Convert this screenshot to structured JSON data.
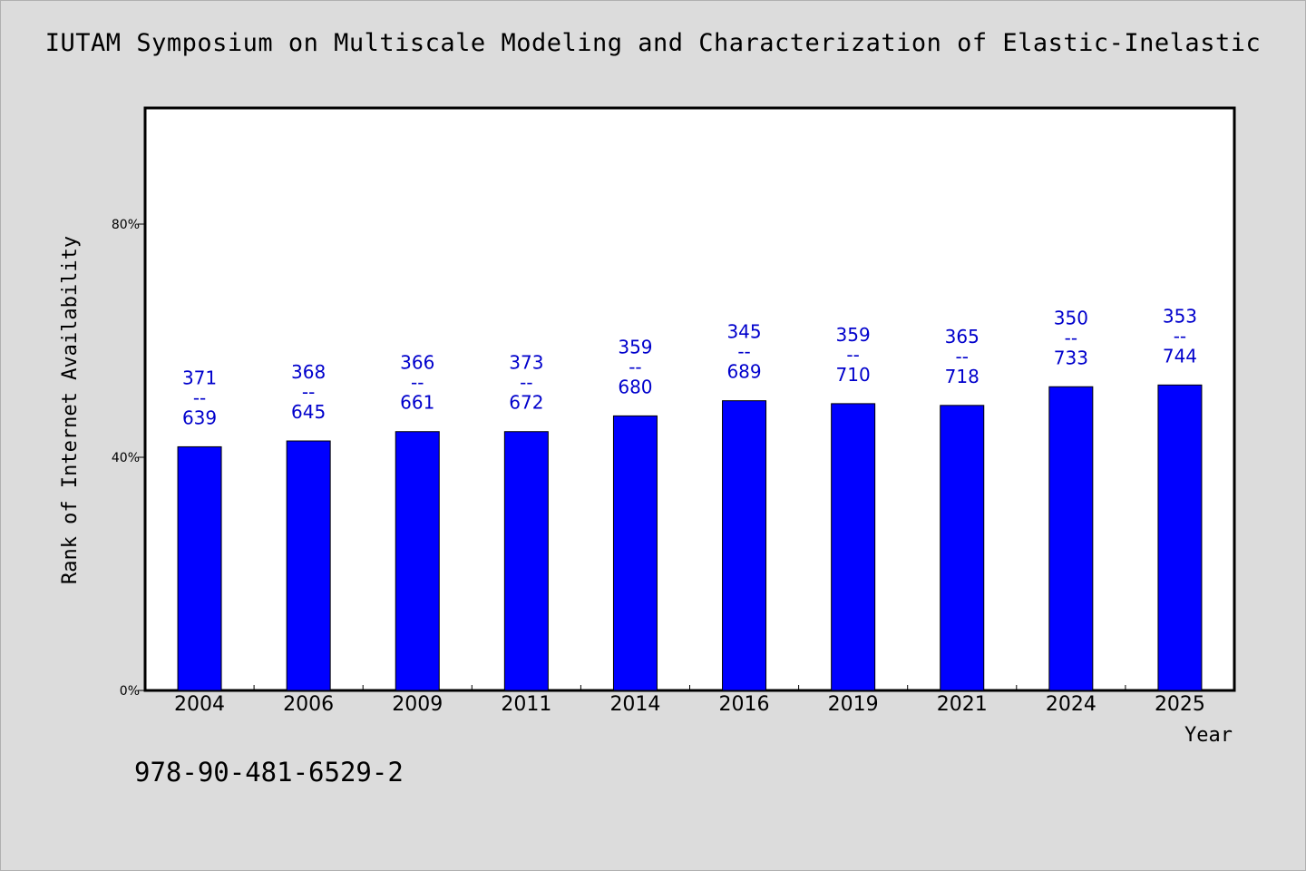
{
  "chart_data": {
    "type": "bar",
    "title": "IUTAM Symposium on Multiscale Modeling and Characterization of Elastic-Inelastic",
    "xlabel": "Year",
    "ylabel": "Rank of Internet Availability",
    "categories": [
      "2004",
      "2006",
      "2009",
      "2011",
      "2014",
      "2016",
      "2019",
      "2021",
      "2024",
      "2025"
    ],
    "values": [
      41.8,
      42.8,
      44.4,
      44.4,
      47.1,
      49.7,
      49.2,
      48.9,
      52.1,
      52.4
    ],
    "value_unit": "%",
    "data_labels": [
      [
        "371",
        "--",
        "639"
      ],
      [
        "368",
        "--",
        "645"
      ],
      [
        "366",
        "--",
        "661"
      ],
      [
        "373",
        "--",
        "672"
      ],
      [
        "359",
        "--",
        "680"
      ],
      [
        "345",
        "--",
        "689"
      ],
      [
        "359",
        "--",
        "710"
      ],
      [
        "365",
        "--",
        "718"
      ],
      [
        "350",
        "--",
        "733"
      ],
      [
        "353",
        "--",
        "744"
      ]
    ],
    "ylim": [
      0,
      100
    ],
    "yticks": [
      0,
      40,
      80
    ],
    "ytick_labels": [
      "0%",
      "40%",
      "80%"
    ],
    "bar_color": "#0000ff",
    "label_color": "#0000cc",
    "background_color": "#dcdcdc",
    "plot_background_color": "#ffffff",
    "grid": false,
    "legend": "none"
  },
  "footer": {
    "isbn": "978-90-481-6529-2"
  }
}
